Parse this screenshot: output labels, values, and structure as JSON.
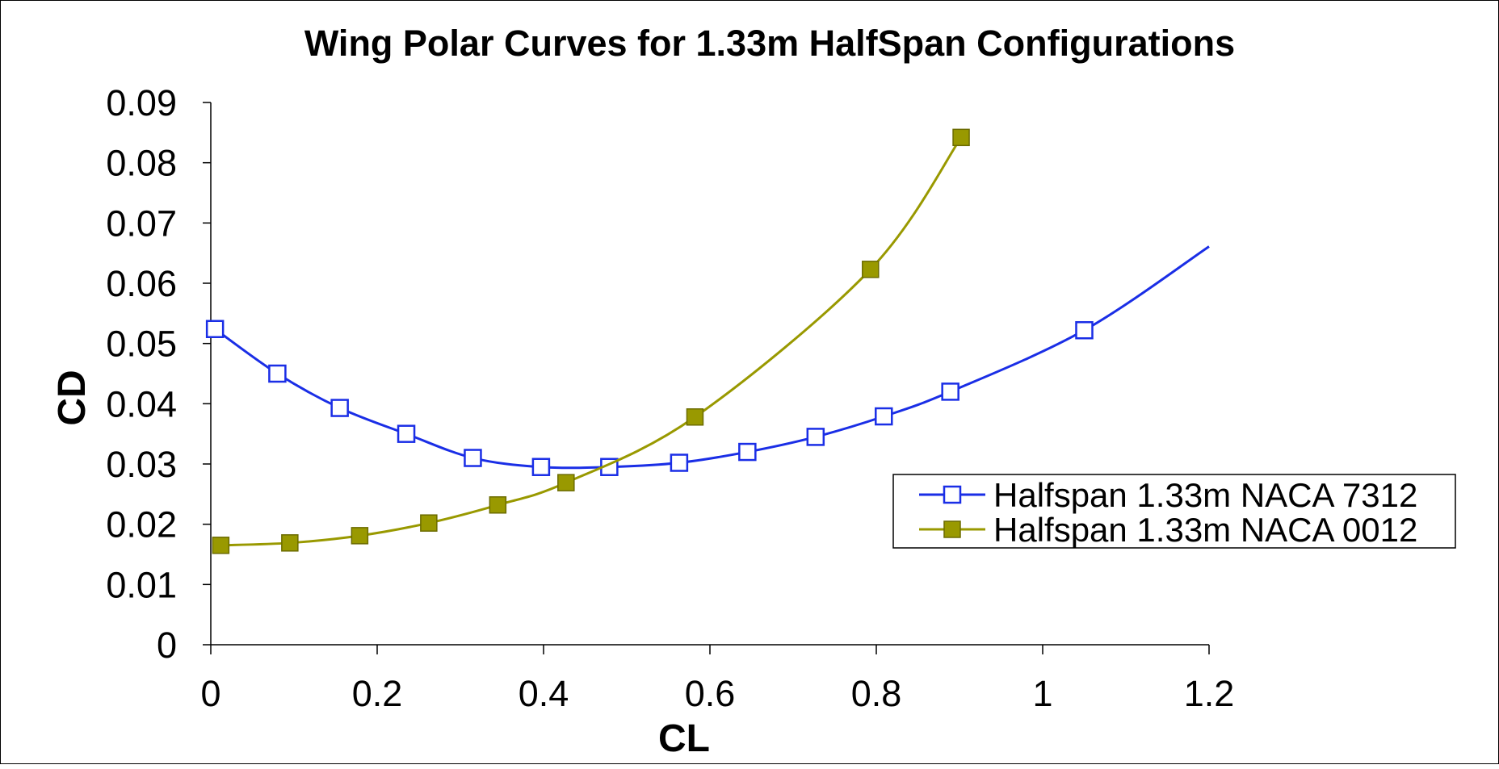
{
  "chart_data": {
    "type": "line",
    "title": "Wing Polar Curves for 1.33m HalfSpan Configurations",
    "xlabel": "CL",
    "ylabel": "CD",
    "xlim": [
      0,
      1.2
    ],
    "ylim": [
      0,
      0.09
    ],
    "x_ticks": [
      0,
      0.2,
      0.4,
      0.6,
      0.8,
      1,
      1.2
    ],
    "x_tick_labels": [
      "0",
      "0.2",
      "0.4",
      "0.6",
      "0.8",
      "1",
      "1.2"
    ],
    "y_ticks": [
      0,
      0.01,
      0.02,
      0.03,
      0.04,
      0.05,
      0.06,
      0.07,
      0.08,
      0.09
    ],
    "y_tick_labels": [
      "0",
      "0.01",
      "0.02",
      "0.03",
      "0.04",
      "0.05",
      "0.06",
      "0.07",
      "0.08",
      "0.09"
    ],
    "grid": false,
    "legend_position": "right",
    "series": [
      {
        "name": "Halfspan 1.33m NACA 7312",
        "color": "#1a2ee6",
        "marker": "square-open",
        "points": [
          {
            "x": 0.005,
            "y": 0.0524
          },
          {
            "x": 0.08,
            "y": 0.045
          },
          {
            "x": 0.155,
            "y": 0.0393
          },
          {
            "x": 0.235,
            "y": 0.035
          },
          {
            "x": 0.315,
            "y": 0.031
          },
          {
            "x": 0.397,
            "y": 0.0295
          },
          {
            "x": 0.479,
            "y": 0.0295
          },
          {
            "x": 0.563,
            "y": 0.0302
          },
          {
            "x": 0.645,
            "y": 0.032
          },
          {
            "x": 0.727,
            "y": 0.0345
          },
          {
            "x": 0.809,
            "y": 0.0379
          },
          {
            "x": 0.889,
            "y": 0.042
          },
          {
            "x": 1.05,
            "y": 0.0522
          }
        ],
        "extension": {
          "x": 1.2,
          "y": 0.0661
        }
      },
      {
        "name": "Halfspan 1.33m NACA 0012",
        "color": "#999900",
        "marker": "square-filled",
        "points": [
          {
            "x": 0.012,
            "y": 0.0165
          },
          {
            "x": 0.095,
            "y": 0.0169
          },
          {
            "x": 0.179,
            "y": 0.0181
          },
          {
            "x": 0.262,
            "y": 0.0202
          },
          {
            "x": 0.345,
            "y": 0.0232
          },
          {
            "x": 0.427,
            "y": 0.0269
          },
          {
            "x": 0.582,
            "y": 0.0378
          },
          {
            "x": 0.793,
            "y": 0.0623
          },
          {
            "x": 0.902,
            "y": 0.0842
          }
        ]
      }
    ]
  }
}
